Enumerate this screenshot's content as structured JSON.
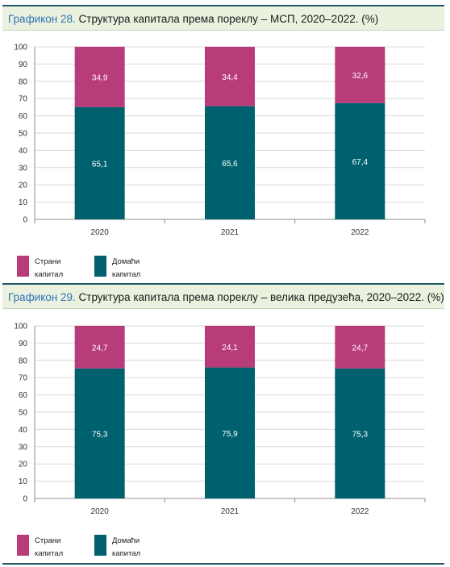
{
  "colors": {
    "foreign": "#b83b7a",
    "domestic": "#00616e",
    "title_bg": "#ebf1df",
    "title_label": "#2e74b5",
    "rule": "#215868"
  },
  "charts": [
    {
      "title_label": "Графикон 28.",
      "title_rest": " Структура капитала према пореклу – МСП, 2020–2022. (%)",
      "legend": {
        "foreign": "Страни капитал",
        "domestic": "Домаћи капитал"
      }
    },
    {
      "title_label": "Графикон 29.",
      "title_rest": " Структура капитала према пореклу – велика предузећа, 2020–2022. (%)",
      "legend": {
        "foreign": "Страни капитал",
        "domestic": "Домаћи капитал"
      }
    }
  ],
  "chart_data": [
    {
      "type": "bar",
      "stacked": true,
      "title": "Структура капитала према пореклу – МСП, 2020–2022. (%)",
      "categories": [
        "2020",
        "2021",
        "2022"
      ],
      "series": [
        {
          "name": "Домаћи капитал",
          "values": [
            65.1,
            65.6,
            67.4
          ],
          "labels": [
            "65,1",
            "65,6",
            "67,4"
          ]
        },
        {
          "name": "Страни капитал",
          "values": [
            34.9,
            34.4,
            32.6
          ],
          "labels": [
            "34,9",
            "34,4",
            "32,6"
          ]
        }
      ],
      "ylim": [
        0,
        100
      ],
      "yticks": [
        0,
        10,
        20,
        30,
        40,
        50,
        60,
        70,
        80,
        90,
        100
      ],
      "grid": true,
      "legend_position": "bottom-left"
    },
    {
      "type": "bar",
      "stacked": true,
      "title": "Структура капитала према пореклу – велика предузећа, 2020–2022. (%)",
      "categories": [
        "2020",
        "2021",
        "2022"
      ],
      "series": [
        {
          "name": "Домаћи капитал",
          "values": [
            75.3,
            75.9,
            75.3
          ],
          "labels": [
            "75,3",
            "75,9",
            "75,3"
          ]
        },
        {
          "name": "Страни капитал",
          "values": [
            24.7,
            24.1,
            24.7
          ],
          "labels": [
            "24,7",
            "24,1",
            "24,7"
          ]
        }
      ],
      "ylim": [
        0,
        100
      ],
      "yticks": [
        0,
        10,
        20,
        30,
        40,
        50,
        60,
        70,
        80,
        90,
        100
      ],
      "grid": true,
      "legend_position": "bottom-left"
    }
  ]
}
